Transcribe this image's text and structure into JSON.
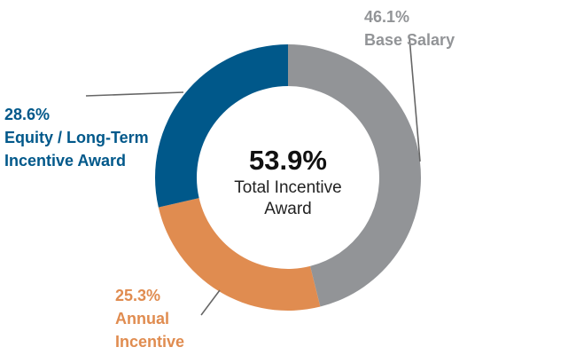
{
  "chart_data": {
    "type": "pie",
    "style": "donut",
    "title": "",
    "center": {
      "value": "53.9%",
      "label_line1": "Total Incentive",
      "label_line2": "Award"
    },
    "slices": [
      {
        "name": "Base Salary",
        "value": 46.1,
        "value_label": "46.1%",
        "line1": "Base Salary",
        "line2": "",
        "color": "#929497"
      },
      {
        "name": "Annual Incentive",
        "value": 25.3,
        "value_label": "25.3%",
        "line1": "Annual",
        "line2": "Incentive",
        "color": "#E08C50"
      },
      {
        "name": "Equity / Long-Term Incentive Award",
        "value": 28.6,
        "value_label": "28.6%",
        "line1": "Equity / Long-Term",
        "line2": "Incentive Award",
        "color": "#00588A"
      }
    ],
    "leader_line_color": "#666666"
  }
}
